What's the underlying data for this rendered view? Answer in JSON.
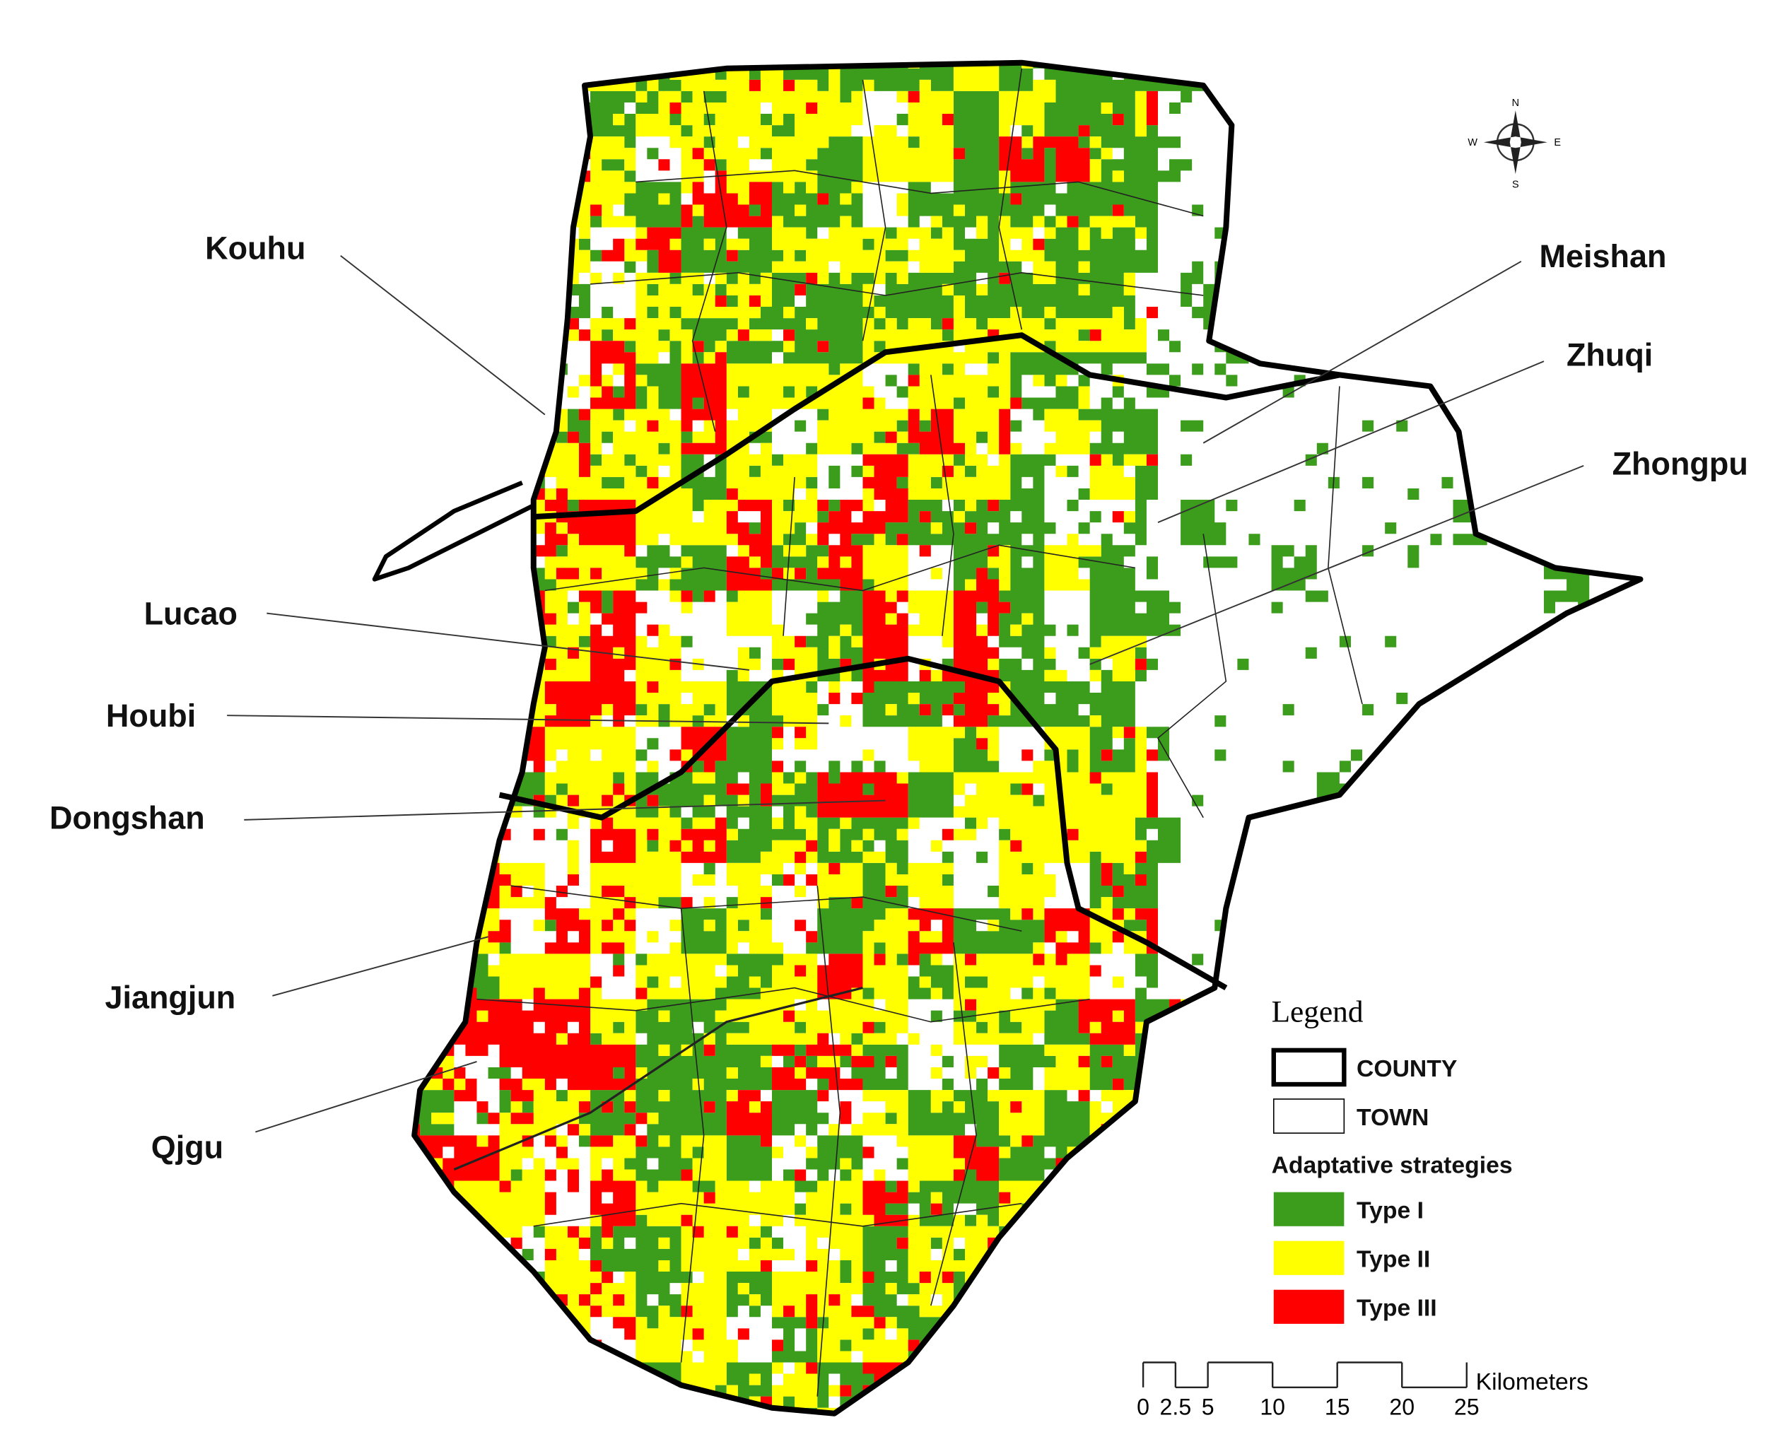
{
  "places": [
    "Kouhu",
    "Meishan",
    "Zhuqi",
    "Zhongpu",
    "Lucao",
    "Houbi",
    "Dongshan",
    "Jiangjun",
    "Qjgu"
  ],
  "compass": {
    "north": "N",
    "south": "S",
    "east": "E",
    "west": "W"
  },
  "legend": {
    "title": "Legend",
    "boundaries": [
      "COUNTY",
      "TOWN"
    ],
    "strategies_title": "Adaptative strategies",
    "strategies": [
      {
        "name": "Type I",
        "color": "#3c9c1c"
      },
      {
        "name": "Type II",
        "color": "#ffff00"
      },
      {
        "name": "Type III",
        "color": "#ff0000"
      }
    ]
  },
  "scale_bar": {
    "ticks": [
      0,
      2.5,
      5,
      10,
      15,
      20,
      25
    ],
    "unit": "Kilometers"
  }
}
